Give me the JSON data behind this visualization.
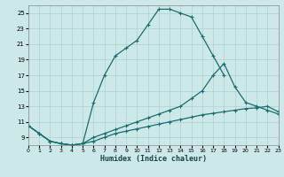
{
  "xlabel": "Humidex (Indice chaleur)",
  "bg_color": "#cce8e8",
  "grid_color": "#b0d0d0",
  "line_color": "#1a6e6e",
  "xlim": [
    0,
    23
  ],
  "ylim": [
    8,
    26
  ],
  "xticks": [
    0,
    1,
    2,
    3,
    4,
    5,
    6,
    7,
    8,
    9,
    10,
    11,
    12,
    13,
    14,
    15,
    16,
    17,
    18,
    19,
    20,
    21,
    22,
    23
  ],
  "yticks": [
    9,
    11,
    13,
    15,
    17,
    19,
    21,
    23,
    25
  ],
  "curve1_x": [
    0,
    1,
    2,
    3,
    4,
    5,
    6,
    7,
    8,
    9,
    10,
    11,
    12,
    13,
    14,
    15,
    16,
    17,
    18
  ],
  "curve1_y": [
    10.5,
    9.5,
    8.5,
    8.2,
    8.0,
    8.2,
    13.5,
    17.0,
    19.5,
    20.5,
    21.5,
    23.5,
    25.5,
    25.5,
    25.0,
    24.5,
    22.0,
    19.5,
    17.0
  ],
  "curve2_x": [
    0,
    1,
    2,
    3,
    4,
    5,
    6,
    7,
    8,
    9,
    10,
    11,
    12,
    13,
    14,
    15,
    16,
    17,
    18,
    19,
    20,
    21,
    22,
    23
  ],
  "curve2_y": [
    10.5,
    9.5,
    8.5,
    8.2,
    8.0,
    8.2,
    9.0,
    9.5,
    10.0,
    10.5,
    11.0,
    11.5,
    12.0,
    12.5,
    13.0,
    14.0,
    15.0,
    17.0,
    18.5,
    15.5,
    13.5,
    13.0,
    12.5,
    12.0
  ],
  "curve3_x": [
    0,
    1,
    2,
    3,
    4,
    5,
    6,
    7,
    8,
    9,
    10,
    11,
    12,
    13,
    14,
    15,
    16,
    17,
    18,
    19,
    20,
    21,
    22,
    23
  ],
  "curve3_y": [
    10.5,
    9.5,
    8.5,
    8.2,
    8.0,
    8.2,
    8.5,
    9.0,
    9.5,
    9.8,
    10.1,
    10.4,
    10.7,
    11.0,
    11.3,
    11.6,
    11.9,
    12.1,
    12.3,
    12.5,
    12.7,
    12.8,
    13.0,
    12.3
  ]
}
